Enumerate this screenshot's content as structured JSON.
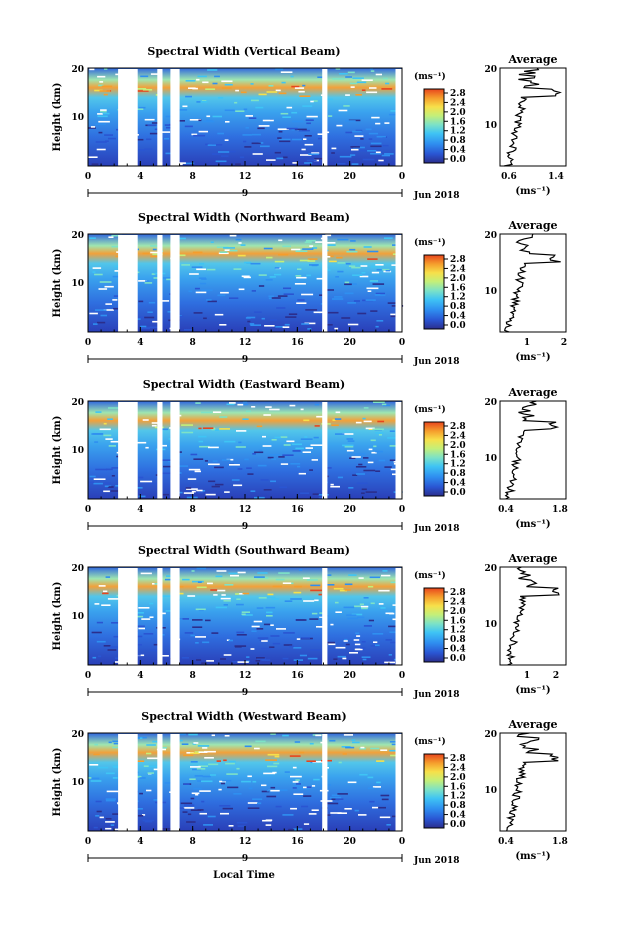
{
  "figure": {
    "xlabel": "Local Time",
    "ylabel": "Height (km)",
    "date_label": "Jun 2018",
    "day_label": "9",
    "average_title": "Average",
    "colorbar_unit": "(ms⁻¹)",
    "average_xlabel": "(ms⁻¹)"
  },
  "panels": [
    {
      "title": "Spectral Width (Vertical Beam)",
      "avg_ticks": [
        "0.6",
        "1.4"
      ]
    },
    {
      "title": "Spectral Width (Northward Beam)",
      "avg_ticks": [
        "1",
        "2"
      ]
    },
    {
      "title": "Spectral Width (Eastward Beam)",
      "avg_ticks": [
        "0.4",
        "1.8"
      ]
    },
    {
      "title": "Spectral Width (Southward Beam)",
      "avg_ticks": [
        "1",
        "2"
      ]
    },
    {
      "title": "Spectral Width (Westward Beam)",
      "avg_ticks": [
        "0.4",
        "1.8"
      ]
    }
  ],
  "chart_data": {
    "type": "heatmap",
    "x_range": [
      0,
      24
    ],
    "x_ticks": [
      "0",
      "4",
      "8",
      "12",
      "16",
      "20",
      "0"
    ],
    "y_range": [
      0,
      20
    ],
    "y_ticks": [
      "20",
      "10"
    ],
    "colorbar_ticks": [
      "2.8",
      "2.4",
      "2.0",
      "1.6",
      "1.2",
      "0.8",
      "0.4",
      "0.0"
    ],
    "colorscale": [
      "#2b2e8c",
      "#2a55d2",
      "#2f8ff0",
      "#3fc4f4",
      "#7de2c6",
      "#c4ef79",
      "#f7e04a",
      "#f59d2c",
      "#e8451d"
    ],
    "data_gaps_local_time": [
      [
        2.3,
        3.8
      ],
      [
        5.3,
        5.7
      ],
      [
        6.3,
        7.0
      ],
      [
        17.9,
        18.3
      ],
      [
        23.5,
        24.0
      ]
    ]
  }
}
